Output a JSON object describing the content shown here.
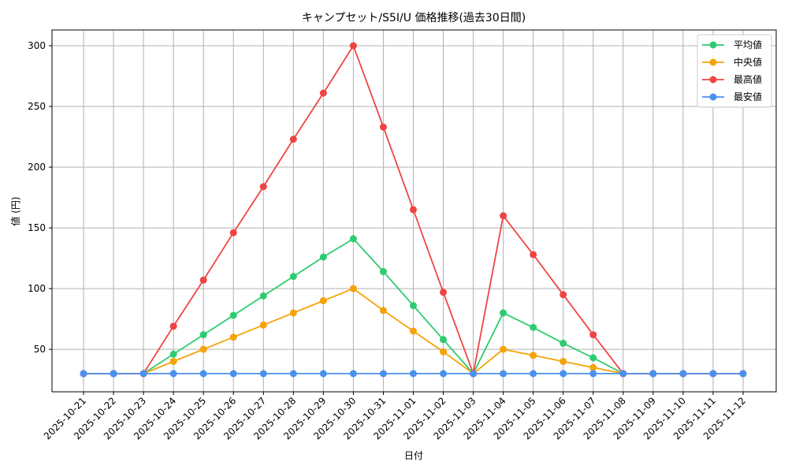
{
  "chart_data": {
    "type": "line",
    "title": "キャンプセット/S5I/U 価格推移(過去30日間)",
    "xlabel": "日付",
    "ylabel": "値 (円)",
    "categories": [
      "2025-10-21",
      "2025-10-22",
      "2025-10-23",
      "2025-10-24",
      "2025-10-25",
      "2025-10-26",
      "2025-10-27",
      "2025-10-28",
      "2025-10-29",
      "2025-10-30",
      "2025-10-31",
      "2025-11-01",
      "2025-11-02",
      "2025-11-03",
      "2025-11-04",
      "2025-11-05",
      "2025-11-06",
      "2025-11-07",
      "2025-11-08",
      "2025-11-09",
      "2025-11-10",
      "2025-11-11",
      "2025-11-12"
    ],
    "yticks": [
      50,
      100,
      150,
      200,
      250,
      300
    ],
    "ylim": [
      15,
      313
    ],
    "grid": true,
    "legend_position": "top-right",
    "series": [
      {
        "name": "平均値",
        "color": "#2ecc71",
        "values": [
          30,
          30,
          30,
          46,
          62,
          78,
          94,
          110,
          126,
          141,
          114,
          86,
          58,
          30,
          80,
          68,
          55,
          43,
          30,
          30,
          30,
          30,
          30
        ]
      },
      {
        "name": "中央値",
        "color": "#f5a30a",
        "values": [
          30,
          30,
          30,
          40,
          50,
          60,
          70,
          80,
          90,
          100,
          82,
          65,
          48,
          30,
          50,
          45,
          40,
          35,
          30,
          30,
          30,
          30,
          30
        ]
      },
      {
        "name": "最高値",
        "color": "#ef4444",
        "values": [
          30,
          30,
          30,
          69,
          107,
          146,
          184,
          223,
          261,
          300,
          233,
          165,
          97,
          30,
          160,
          128,
          95,
          62,
          30,
          30,
          30,
          30,
          30
        ]
      },
      {
        "name": "最安値",
        "color": "#4a90f0",
        "values": [
          30,
          30,
          30,
          30,
          30,
          30,
          30,
          30,
          30,
          30,
          30,
          30,
          30,
          30,
          30,
          30,
          30,
          30,
          30,
          30,
          30,
          30,
          30
        ]
      }
    ]
  }
}
